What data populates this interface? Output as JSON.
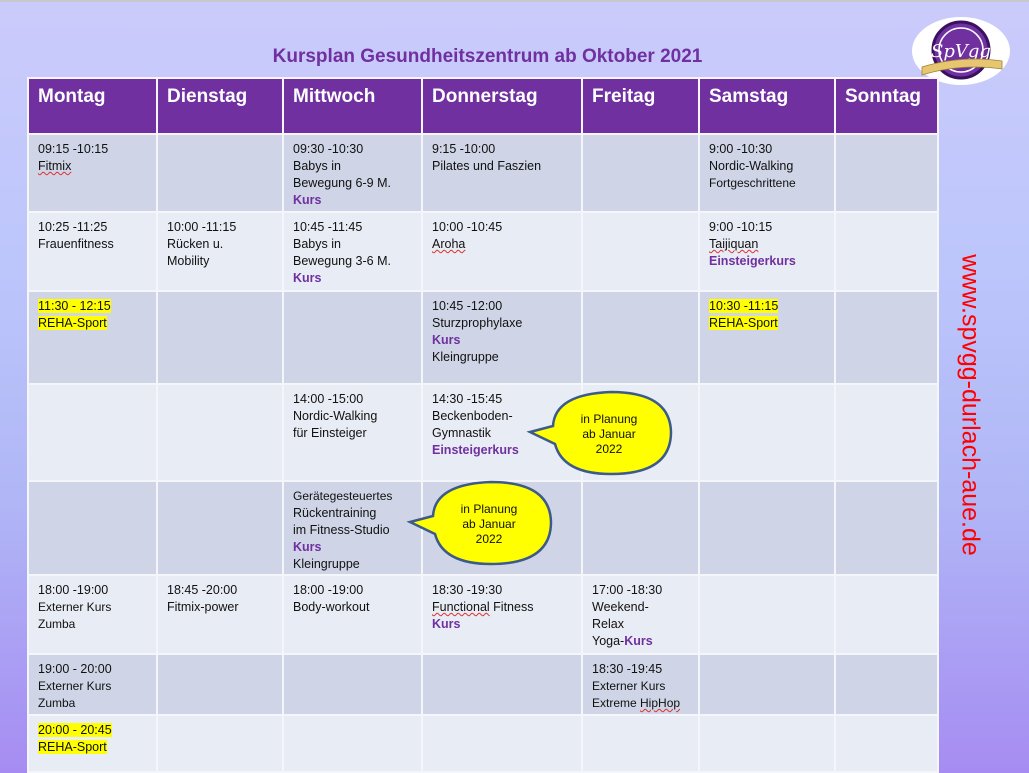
{
  "title": "Kursplan Gesundheitszentrum ab Oktober 2021",
  "logo": {
    "label": "SpVgg 1910 Durlach-Aue",
    "color": "#7030a0"
  },
  "website": "www.spvgg-durlach-aue.de",
  "colors": {
    "header": "#7030a0",
    "kurs": "#7030a0",
    "highlight": "#ffff00",
    "website": "#ff0000",
    "row_dark": "#cfd5e6",
    "row_light": "#e8ecf4"
  },
  "days": [
    "Montag",
    "Dienstag",
    "Mittwoch",
    "Donnerstag",
    "Freitag",
    "Samstag",
    "Sonntag"
  ],
  "rows": [
    [
      [
        [
          {
            "t": "09:15 -10:15"
          }
        ],
        [
          {
            "t": "Fitmix",
            "s": "sq"
          }
        ]
      ],
      [],
      [
        [
          {
            "t": "09:30 -10:30"
          }
        ],
        [
          {
            "t": "Babys in"
          }
        ],
        [
          {
            "t": "Bewegung 6-9 M."
          }
        ],
        [
          {
            "t": "Kurs",
            "s": "kurs"
          }
        ]
      ],
      [
        [
          {
            "t": "9:15 -10:00"
          }
        ],
        [
          {
            "t": "Pilates und Faszien"
          }
        ]
      ],
      [],
      [
        [
          {
            "t": "9:00 -10:30"
          }
        ],
        [
          {
            "t": "Nordic-Walking"
          }
        ],
        [
          {
            "t": "Fortgeschrittene",
            "s": "small"
          }
        ]
      ],
      []
    ],
    [
      [
        [
          {
            "t": "10:25 -11:25"
          }
        ],
        [
          {
            "t": "Frauenfitness"
          }
        ]
      ],
      [
        [
          {
            "t": "10:00 -11:15"
          }
        ],
        [
          {
            "t": "Rücken u."
          }
        ],
        [
          {
            "t": "Mobility"
          }
        ]
      ],
      [
        [
          {
            "t": "10:45 -11:45"
          }
        ],
        [
          {
            "t": "Babys in"
          }
        ],
        [
          {
            "t": "Bewegung 3-6 M."
          }
        ],
        [
          {
            "t": "Kurs",
            "s": "kurs"
          }
        ]
      ],
      [
        [
          {
            "t": "10:00 -10:45"
          }
        ],
        [
          {
            "t": "Aroha",
            "s": "sq"
          }
        ]
      ],
      [],
      [
        [
          {
            "t": "9:00 -10:15"
          }
        ],
        [
          {
            "t": "Taijiquan",
            "s": "sq"
          }
        ],
        [
          {
            "t": "Einsteigerkurs",
            "s": "kurs"
          }
        ]
      ],
      []
    ],
    [
      [
        [
          {
            "t": "11:30 - 12:15",
            "s": "hl"
          }
        ],
        [
          {
            "t": "REHA-Sport",
            "s": "hl"
          }
        ]
      ],
      [],
      [],
      [
        [
          {
            "t": "10:45 -12:00"
          }
        ],
        [
          {
            "t": "Sturzprophylaxe"
          }
        ],
        [
          {
            "t": "Kurs",
            "s": "kurs"
          }
        ],
        [
          {
            "t": "Kleingruppe"
          }
        ]
      ],
      [],
      [
        [
          {
            "t": "10:30 -11:15",
            "s": "hl"
          }
        ],
        [
          {
            "t": "REHA-Sport",
            "s": "hl"
          }
        ]
      ],
      []
    ],
    [
      [],
      [],
      [
        [
          {
            "t": "14:00 -15:00"
          }
        ],
        [
          {
            "t": "Nordic-Walking"
          }
        ],
        [
          {
            "t": "für Einsteiger"
          }
        ]
      ],
      [
        [
          {
            "t": "14:30 -15:45"
          }
        ],
        [
          {
            "t": "Beckenboden-"
          }
        ],
        [
          {
            "t": "Gymnastik"
          }
        ],
        [
          {
            "t": "Einsteigerkurs",
            "s": "kurs"
          }
        ]
      ],
      [],
      [],
      []
    ],
    [
      [],
      [],
      [
        [
          {
            "t": "Gerätegesteuertes",
            "s": "small"
          }
        ],
        [
          {
            "t": "Rückentraining"
          }
        ],
        [
          {
            "t": "im Fitness-Studio"
          }
        ],
        [
          {
            "t": "Kurs",
            "s": "kurs"
          }
        ],
        [
          {
            "t": "Kleingruppe"
          }
        ]
      ],
      [],
      [],
      [],
      []
    ],
    [
      [
        [
          {
            "t": "18:00 -19:00"
          }
        ],
        [
          {
            "t": "Externer Kurs",
            "s": "small"
          }
        ],
        [
          {
            "t": "Zumba",
            "s": "small"
          }
        ]
      ],
      [
        [
          {
            "t": "18:45 -20:00"
          }
        ],
        [
          {
            "t": "Fitmix-power"
          }
        ]
      ],
      [
        [
          {
            "t": "18:00 -19:00"
          }
        ],
        [
          {
            "t": "Body-workout"
          }
        ]
      ],
      [
        [
          {
            "t": "18:30 -19:30"
          }
        ],
        [
          {
            "t": "Functional",
            "s": "sq"
          },
          {
            "t": " Fitness"
          }
        ],
        [
          {
            "t": "Kurs",
            "s": "kurs"
          }
        ]
      ],
      [
        [
          {
            "t": "17:00 -18:30"
          }
        ],
        [
          {
            "t": "Weekend-"
          }
        ],
        [
          {
            "t": "Relax"
          }
        ],
        [
          {
            "t": "Yoga-"
          },
          {
            "t": "Kurs",
            "s": "kurs"
          }
        ]
      ],
      [],
      []
    ],
    [
      [
        [
          {
            "t": "19:00 - 20:00"
          }
        ],
        [
          {
            "t": "Externer Kurs",
            "s": "small"
          }
        ],
        [
          {
            "t": "Zumba",
            "s": "small"
          }
        ]
      ],
      [],
      [],
      [],
      [
        [
          {
            "t": "18:30 -19:45"
          }
        ],
        [
          {
            "t": "Externer Kurs",
            "s": "small"
          }
        ],
        [
          {
            "t": "Extreme ",
            "s": "small"
          },
          {
            "t": "HipHop",
            "s": "small sq"
          }
        ]
      ],
      [],
      []
    ],
    [
      [
        [
          {
            "t": "20:00 - 20:45",
            "s": "hl"
          }
        ],
        [
          {
            "t": "REHA-Sport",
            "s": "hl"
          }
        ]
      ],
      [],
      [],
      [],
      [],
      [],
      []
    ]
  ],
  "callouts": [
    {
      "lines": [
        "in Planung",
        "ab Januar",
        "2022"
      ]
    },
    {
      "lines": [
        "in Planung",
        "ab Januar",
        "2022"
      ]
    }
  ]
}
